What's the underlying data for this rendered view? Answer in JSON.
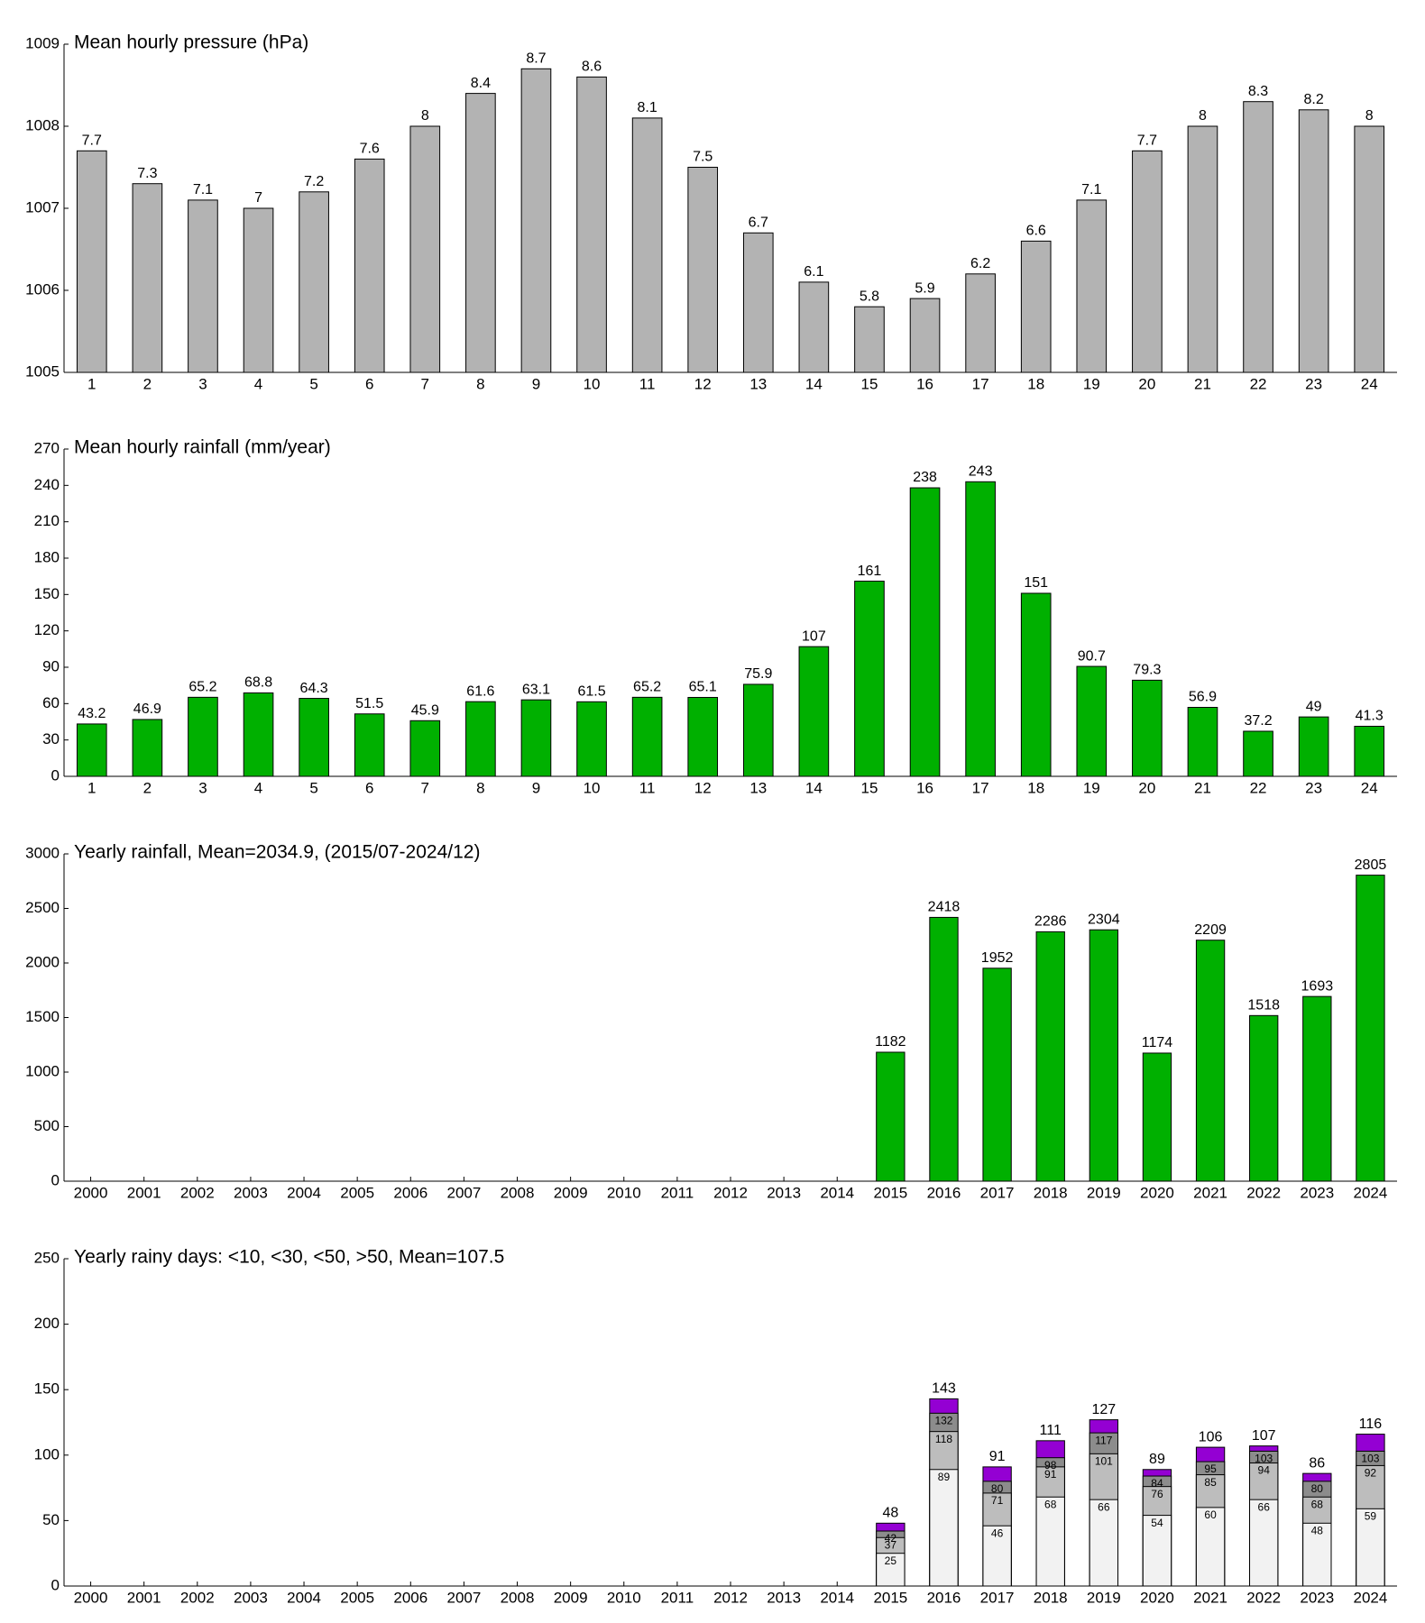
{
  "chart_data": [
    {
      "type": "bar",
      "title": "Mean hourly pressure (hPa)",
      "categories": [
        "1",
        "2",
        "3",
        "4",
        "5",
        "6",
        "7",
        "8",
        "9",
        "10",
        "11",
        "12",
        "13",
        "14",
        "15",
        "16",
        "17",
        "18",
        "19",
        "20",
        "21",
        "22",
        "23",
        "24"
      ],
      "values": [
        1007.7,
        1007.3,
        1007.1,
        1007.0,
        1007.2,
        1007.6,
        1008.0,
        1008.4,
        1008.7,
        1008.6,
        1008.1,
        1007.5,
        1006.7,
        1006.1,
        1005.8,
        1005.9,
        1006.2,
        1006.6,
        1007.1,
        1007.7,
        1008.0,
        1008.3,
        1008.2,
        1008.0
      ],
      "value_labels": [
        "7.7",
        "7.3",
        "7.1",
        "7",
        "7.2",
        "7.6",
        "8",
        "8.4",
        "8.7",
        "8.6",
        "8.1",
        "7.5",
        "6.7",
        "6.1",
        "5.8",
        "5.9",
        "6.2",
        "6.6",
        "7.1",
        "7.7",
        "8",
        "8.3",
        "8.2",
        "8"
      ],
      "color": "#b3b3b3",
      "ylim": [
        1005,
        1009
      ],
      "yticks": [
        1005,
        1006,
        1007,
        1008,
        1009
      ]
    },
    {
      "type": "bar",
      "title": "Mean hourly rainfall (mm/year)",
      "categories": [
        "1",
        "2",
        "3",
        "4",
        "5",
        "6",
        "7",
        "8",
        "9",
        "10",
        "11",
        "12",
        "13",
        "14",
        "15",
        "16",
        "17",
        "18",
        "19",
        "20",
        "21",
        "22",
        "23",
        "24"
      ],
      "values": [
        43.2,
        46.9,
        65.2,
        68.8,
        64.3,
        51.5,
        45.9,
        61.6,
        63.1,
        61.5,
        65.2,
        65.1,
        75.9,
        107,
        161,
        238,
        243,
        151,
        90.7,
        79.3,
        56.9,
        37.2,
        49,
        41.3
      ],
      "color": "#00b000",
      "ylim": [
        0,
        270
      ],
      "yticks": [
        0,
        30,
        60,
        90,
        120,
        150,
        180,
        210,
        240,
        270
      ]
    },
    {
      "type": "bar",
      "title": "Yearly rainfall, Mean=2034.9, (2015/07-2024/12)",
      "categories": [
        "2000",
        "2001",
        "2002",
        "2003",
        "2004",
        "2005",
        "2006",
        "2007",
        "2008",
        "2009",
        "2010",
        "2011",
        "2012",
        "2013",
        "2014",
        "2015",
        "2016",
        "2017",
        "2018",
        "2019",
        "2020",
        "2021",
        "2022",
        "2023",
        "2024"
      ],
      "values": [
        null,
        null,
        null,
        null,
        null,
        null,
        null,
        null,
        null,
        null,
        null,
        null,
        null,
        null,
        null,
        1182,
        2418,
        1952,
        2286,
        2304,
        1174,
        2209,
        1518,
        1693,
        2805
      ],
      "color": "#00b000",
      "ylim": [
        0,
        3000
      ],
      "yticks": [
        0,
        500,
        1000,
        1500,
        2000,
        2500,
        3000
      ]
    },
    {
      "type": "overlap",
      "title": "Yearly rainy days: <10, <30, <50, >50, Mean=107.5",
      "categories": [
        "2000",
        "2001",
        "2002",
        "2003",
        "2004",
        "2005",
        "2006",
        "2007",
        "2008",
        "2009",
        "2010",
        "2011",
        "2012",
        "2013",
        "2014",
        "2015",
        "2016",
        "2017",
        "2018",
        "2019",
        "2020",
        "2021",
        "2022",
        "2023",
        "2024"
      ],
      "series": [
        {
          "color": "#f2f2f2",
          "values": [
            null,
            null,
            null,
            null,
            null,
            null,
            null,
            null,
            null,
            null,
            null,
            null,
            null,
            null,
            null,
            25,
            89,
            46,
            68,
            66,
            54,
            60,
            66,
            48,
            59
          ]
        },
        {
          "color": "#bdbdbd",
          "values": [
            null,
            null,
            null,
            null,
            null,
            null,
            null,
            null,
            null,
            null,
            null,
            null,
            null,
            null,
            null,
            37,
            118,
            71,
            91,
            101,
            76,
            85,
            94,
            68,
            92
          ]
        },
        {
          "color": "#8c8c8c",
          "values": [
            null,
            null,
            null,
            null,
            null,
            null,
            null,
            null,
            null,
            null,
            null,
            null,
            null,
            null,
            null,
            42,
            132,
            80,
            98,
            117,
            84,
            95,
            103,
            80,
            103
          ]
        },
        {
          "color": "#9400d3",
          "values": [
            null,
            null,
            null,
            null,
            null,
            null,
            null,
            null,
            null,
            null,
            null,
            null,
            null,
            null,
            null,
            48,
            143,
            91,
            111,
            127,
            89,
            106,
            107,
            86,
            116
          ]
        }
      ],
      "ylim": [
        0,
        250
      ],
      "yticks": [
        0,
        50,
        100,
        150,
        200,
        250
      ]
    }
  ]
}
